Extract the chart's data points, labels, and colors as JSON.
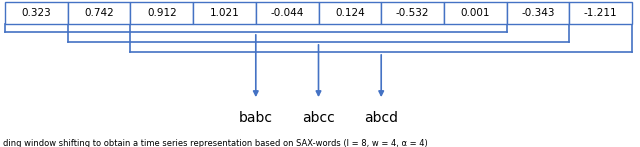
{
  "values": [
    "0.323",
    "0.742",
    "0.912",
    "1.021",
    "-0.044",
    "0.124",
    "-0.532",
    "0.001",
    "-0.343",
    "-1.211"
  ],
  "n_cells": 10,
  "border_color": "#4472C4",
  "text_color": "black",
  "arrow_color": "#4472C4",
  "words": [
    "babc",
    "abcc",
    "abcd"
  ],
  "bracket_spans": [
    {
      "start": 0,
      "end": 8
    },
    {
      "start": 1,
      "end": 9
    },
    {
      "start": 2,
      "end": 10
    }
  ],
  "bracket_color": "#4472C4",
  "figsize": [
    6.4,
    1.47
  ],
  "dpi": 100,
  "bottom_text": "ding window shifting to obtain a time series representation based on SAX-words (l = 8, w = 4, α = 4)"
}
